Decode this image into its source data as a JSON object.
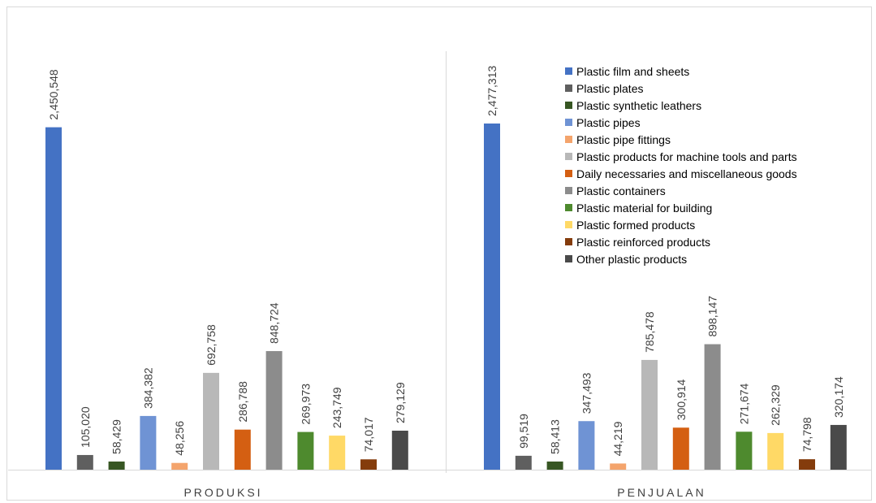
{
  "chart_data": {
    "type": "bar",
    "groups": [
      "PRODUKSI",
      "PENJUALAN"
    ],
    "series": [
      {
        "name": "Plastic film and sheets",
        "color": "#4472c4",
        "values": [
          2450548,
          2477313
        ],
        "labels": [
          "2,450,548",
          "2,477,313"
        ]
      },
      {
        "name": "Plastic plates",
        "color": "#5f5f5f",
        "values": [
          105020,
          99519
        ],
        "labels": [
          "105,020",
          "99,519"
        ]
      },
      {
        "name": "Plastic synthetic leathers",
        "color": "#375623",
        "values": [
          58429,
          58413
        ],
        "labels": [
          "58,429",
          "58,413"
        ]
      },
      {
        "name": "Plastic pipes",
        "color": "#6f93d4",
        "values": [
          384382,
          347493
        ],
        "labels": [
          "384,382",
          "347,493"
        ]
      },
      {
        "name": "Plastic pipe fittings",
        "color": "#f4a46c",
        "values": [
          48256,
          44219
        ],
        "labels": [
          "48,256",
          "44,219"
        ]
      },
      {
        "name": "Plastic products for machine tools and parts",
        "color": "#b8b8b8",
        "values": [
          692758,
          785478
        ],
        "labels": [
          "692,758",
          "785,478"
        ]
      },
      {
        "name": "Daily necessaries and miscellaneous goods",
        "color": "#d45f12",
        "values": [
          286788,
          300914
        ],
        "labels": [
          "286,788",
          "300,914"
        ]
      },
      {
        "name": "Plastic containers",
        "color": "#8c8c8c",
        "values": [
          848724,
          898147
        ],
        "labels": [
          "848,724",
          "898,147"
        ]
      },
      {
        "name": "Plastic material for building",
        "color": "#4e8a2e",
        "values": [
          269973,
          271674
        ],
        "labels": [
          "269,973",
          "271,674"
        ]
      },
      {
        "name": "Plastic formed products",
        "color": "#ffd966",
        "values": [
          243749,
          262329
        ],
        "labels": [
          "243,749",
          "262,329"
        ]
      },
      {
        "name": "Plastic reinforced products",
        "color": "#843c0c",
        "values": [
          74017,
          74798
        ],
        "labels": [
          "74,017",
          "74,798"
        ]
      },
      {
        "name": "Other plastic products",
        "color": "#4a4a4a",
        "values": [
          279129,
          320174
        ],
        "labels": [
          "279,129",
          "320,174"
        ]
      }
    ],
    "ylim": [
      0,
      2477313
    ],
    "grid": false,
    "legend_position": "top-right"
  }
}
